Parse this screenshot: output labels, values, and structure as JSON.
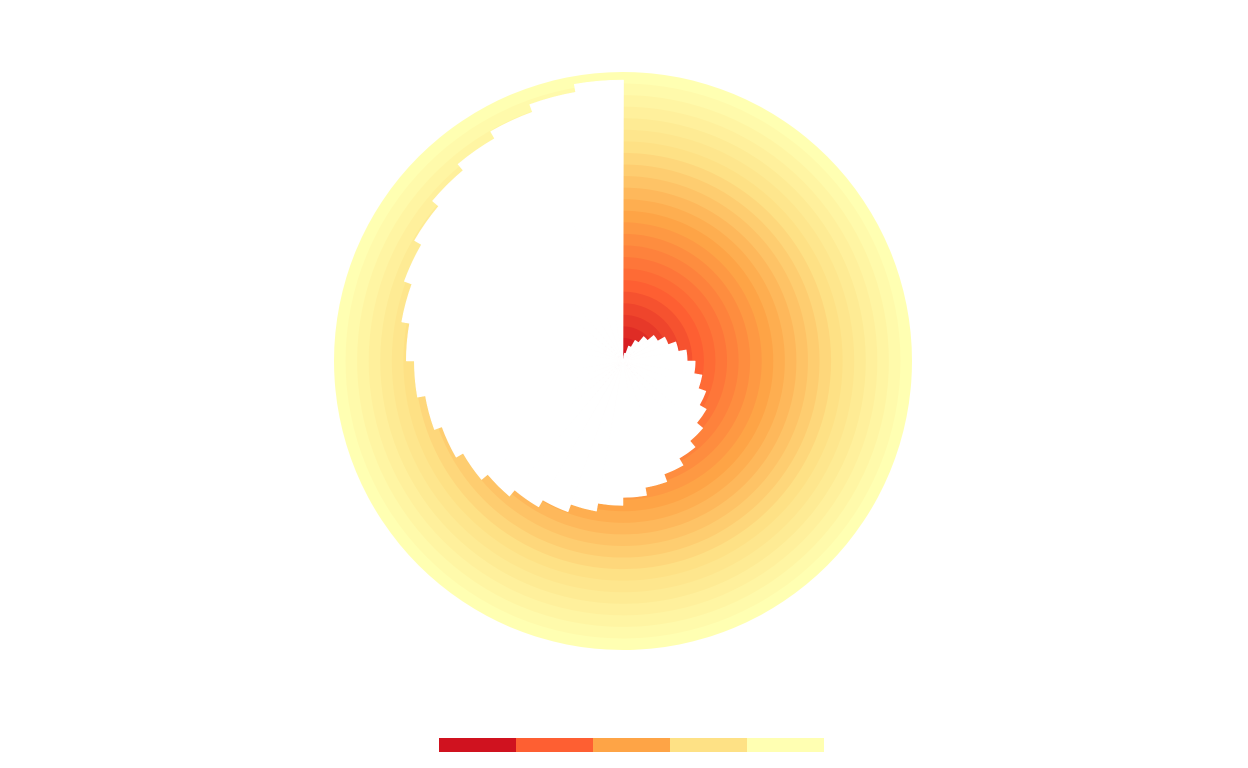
{
  "chart_data": {
    "type": "spiral",
    "values": [
      0,
      1,
      2,
      3,
      4,
      5,
      6,
      7,
      8,
      9,
      10,
      11,
      12,
      13,
      14,
      15,
      16,
      17,
      18,
      19,
      20,
      21,
      22,
      23,
      24,
      25,
      26,
      27,
      28,
      29,
      30,
      31,
      32,
      33,
      34,
      35
    ],
    "ylim": [
      0,
      36
    ],
    "rings": 25,
    "colors": [
      "#d0121f",
      "#fe5f32",
      "#fea446",
      "#fee185",
      "#ffffb2"
    ]
  }
}
